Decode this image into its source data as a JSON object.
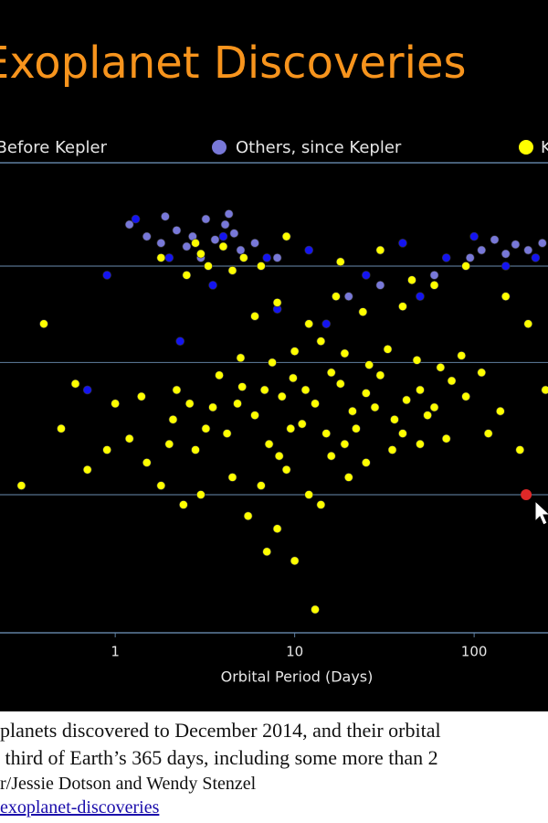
{
  "chart_data": {
    "type": "scatter",
    "title": "Exoplanet Discoveries",
    "x_label": "Orbital Period (Days)",
    "x_log": true,
    "y_log": true,
    "xlim": [
      0.228,
      258
    ],
    "xticks": [
      1,
      10,
      100
    ],
    "ylim": [
      0.235,
      32.5
    ],
    "y_gridlines": [
      1,
      4,
      11
    ],
    "series": [
      {
        "name": "Before Kepler",
        "color": "#1414f0",
        "x": [
          1.3,
          2.0,
          4.0,
          7,
          12,
          25,
          40,
          70,
          100,
          150,
          3.5,
          8,
          15,
          50,
          0.9,
          220,
          2.3,
          0.7
        ],
        "y": [
          18,
          12,
          15,
          12,
          13,
          10,
          14,
          12,
          15,
          11,
          9,
          7,
          6,
          8,
          10,
          12,
          5,
          3
        ]
      },
      {
        "name": "Others, since Kepler",
        "color": "#7878d8",
        "x": [
          1.8,
          2.2,
          2.7,
          3.2,
          3.6,
          4.1,
          4.6,
          5.0,
          3.0,
          2.5,
          1.5,
          1.2,
          6,
          8,
          110,
          130,
          150,
          170,
          200,
          240,
          95,
          60,
          30,
          20,
          1.9,
          4.3
        ],
        "y": [
          14,
          16,
          15,
          18,
          14.5,
          17,
          15.5,
          13,
          12,
          13.5,
          15,
          17,
          14,
          12,
          13,
          14.5,
          12.5,
          13.8,
          13,
          14,
          12,
          10,
          9,
          8,
          18.5,
          19
        ]
      },
      {
        "name": "Kepler",
        "color": "#ffff00",
        "x": [
          1.2,
          1.5,
          2.1,
          2.8,
          3.5,
          4.2,
          5.1,
          6.0,
          7.2,
          8.5,
          9.8,
          11,
          13,
          15,
          18,
          21,
          25,
          30,
          36,
          42,
          50,
          60,
          75,
          90,
          110,
          140,
          4.5,
          6.5,
          9,
          12,
          16,
          20,
          3,
          2.4,
          1.8,
          0.9,
          0.7,
          0.5,
          0.3,
          5.5,
          8,
          14,
          10,
          7,
          13,
          25,
          35,
          50,
          70,
          120,
          2.2,
          3.8,
          5,
          7.5,
          10,
          14,
          19,
          26,
          33,
          48,
          65,
          85,
          6,
          8,
          12,
          17,
          24,
          40,
          60,
          150,
          200,
          2.5,
          3.0,
          3.3,
          4.0,
          4.5,
          5.2,
          2.8,
          1.8,
          6.5,
          9,
          18,
          30,
          45,
          90,
          0.4,
          0.6,
          1.0,
          250,
          180,
          3.2,
          4.8,
          6.8,
          9.5,
          11.5,
          16,
          22,
          28,
          40,
          55,
          1.4,
          2.0,
          2.6,
          8.2,
          19
        ],
        "y": [
          1.8,
          1.4,
          2.2,
          1.6,
          2.5,
          1.9,
          3.1,
          2.3,
          1.7,
          2.8,
          3.4,
          2.1,
          2.6,
          1.9,
          3.2,
          2.4,
          2.9,
          3.5,
          2.2,
          2.7,
          3.0,
          2.5,
          3.3,
          2.8,
          3.6,
          2.4,
          1.2,
          1.1,
          1.3,
          1.0,
          1.5,
          1.2,
          1.0,
          0.9,
          1.1,
          1.6,
          1.3,
          2.0,
          1.1,
          0.8,
          0.7,
          0.9,
          0.5,
          0.55,
          0.3,
          1.4,
          1.6,
          1.7,
          1.8,
          1.9,
          3.0,
          3.5,
          4.2,
          4.0,
          4.5,
          5.0,
          4.4,
          3.9,
          4.6,
          4.1,
          3.8,
          4.3,
          6.5,
          7.5,
          6.0,
          8.0,
          6.8,
          7.2,
          9.0,
          8.0,
          6.0,
          10,
          12.5,
          11,
          13.5,
          10.5,
          12,
          14,
          12,
          11,
          15,
          11.5,
          13,
          9.5,
          11,
          6,
          3.2,
          2.6,
          3.0,
          1.6,
          2.0,
          2.6,
          3.0,
          2.0,
          3.0,
          3.6,
          2.0,
          2.5,
          1.9,
          2.3,
          2.8,
          1.7,
          2.6,
          1.5,
          1.7
        ]
      }
    ],
    "highlight": {
      "x": 195,
      "y": 1,
      "color": "#e02828"
    }
  },
  "caption": {
    "lines": [
      "planets discovered to December 2014, and their orbital",
      " third of Earth’s 365 days, including some more than 2",
      "r/Jessie Dotson and Wendy Stenzel"
    ],
    "link": "exoplanet-discoveries"
  }
}
